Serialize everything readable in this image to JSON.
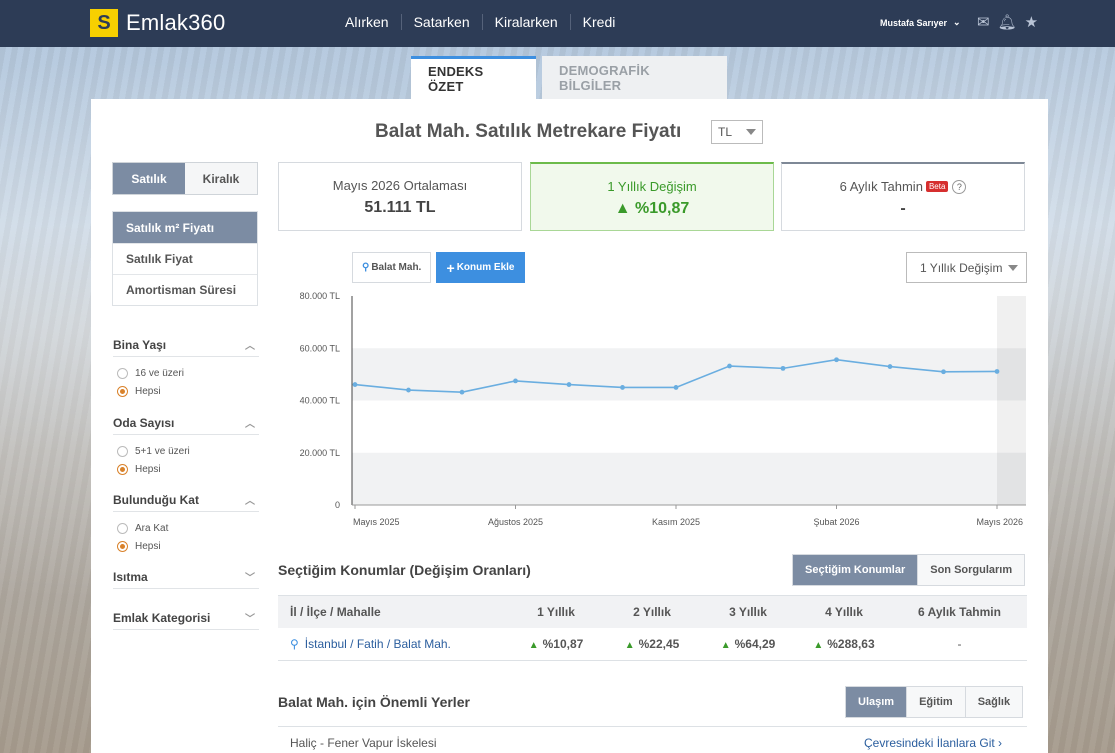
{
  "brand": {
    "badge": "S",
    "name": "Emlak360"
  },
  "nav": [
    "Alırken",
    "Satarken",
    "Kiralarken",
    "Kredi"
  ],
  "user": {
    "name": "Mustafa Sarıyer"
  },
  "tabs": [
    "ENDEKS ÖZET",
    "DEMOGRAFİK BİLGİLER"
  ],
  "header": {
    "title": "Balat Mah. Satılık Metrekare Fiyatı",
    "currency": "TL"
  },
  "sidebar": {
    "segment": [
      "Satılık",
      "Kiralık"
    ],
    "menu": [
      "Satılık m² Fiyatı",
      "Satılık Fiyat",
      "Amortisman Süresi"
    ],
    "filters": [
      {
        "title": "Bina Yaşı",
        "options": [
          "16 ve üzeri",
          "Hepsi"
        ]
      },
      {
        "title": "Oda Sayısı",
        "options": [
          "5+1 ve üzeri",
          "Hepsi"
        ]
      },
      {
        "title": "Bulunduğu Kat",
        "options": [
          "Ara Kat",
          "Hepsi"
        ]
      },
      {
        "title": "Isıtma"
      },
      {
        "title": "Emlak Kategorisi"
      }
    ]
  },
  "stats": {
    "avg_label": "Mayıs 2026 Ortalaması",
    "avg_value": "51.111 TL",
    "change_label": "1 Yıllık Değişim",
    "change_value": "%10,87",
    "forecast_label": "6 Aylık Tahmin",
    "forecast_badge": "Beta",
    "forecast_help": "?",
    "forecast_value": "-"
  },
  "chart_controls": {
    "location_chip": "Balat Mah.",
    "add_button": "Konum Ekle",
    "period": "1 Yıllık Değişim"
  },
  "chart_data": {
    "type": "line",
    "x": [
      "Mayıs 2025",
      "Haziran 2025",
      "Temmuz 2025",
      "Ağustos 2025",
      "Eylül 2025",
      "Ekim 2025",
      "Kasım 2025",
      "Aralık 2025",
      "Ocak 2026",
      "Şubat 2026",
      "Mart 2026",
      "Nisan 2026",
      "Mayıs 2026"
    ],
    "x_tick_labels": [
      "Mayıs 2025",
      "Ağustos 2025",
      "Kasım 2025",
      "Şubat 2026",
      "Mayıs 2026"
    ],
    "y_tick_labels": [
      "80.000 TL",
      "60.000 TL",
      "40.000 TL",
      "20.000 TL",
      "0"
    ],
    "series": [
      {
        "values": [
          46100,
          44000,
          43200,
          47500,
          46100,
          45000,
          45000,
          53200,
          52300,
          55600,
          53000,
          51000,
          51111
        ]
      }
    ],
    "ylim": [
      0,
      80000
    ],
    "grid": false,
    "line_color": "#6aaee0"
  },
  "comparison": {
    "title": "Seçtiğim Konumlar (Değişim Oranları)",
    "buttons": [
      "Seçtiğim Konumlar",
      "Son Sorgularım"
    ],
    "columns": [
      "İl / İlçe / Mahalle",
      "1 Yıllık",
      "2 Yıllık",
      "3 Yıllık",
      "4 Yıllık",
      "6 Aylık Tahmin"
    ],
    "rows": [
      {
        "location": "İstanbul / Fatih / Balat Mah.",
        "y1": "%10,87",
        "y2": "%22,45",
        "y3": "%64,29",
        "y4": "%288,63",
        "forecast": "-"
      }
    ]
  },
  "places": {
    "title": "Balat Mah. için Önemli Yerler",
    "buttons": [
      "Ulaşım",
      "Eğitim",
      "Sağlık"
    ],
    "item": "Haliç - Fener Vapur İskelesi",
    "link": "Çevresindeki İlanlara Git ›"
  }
}
